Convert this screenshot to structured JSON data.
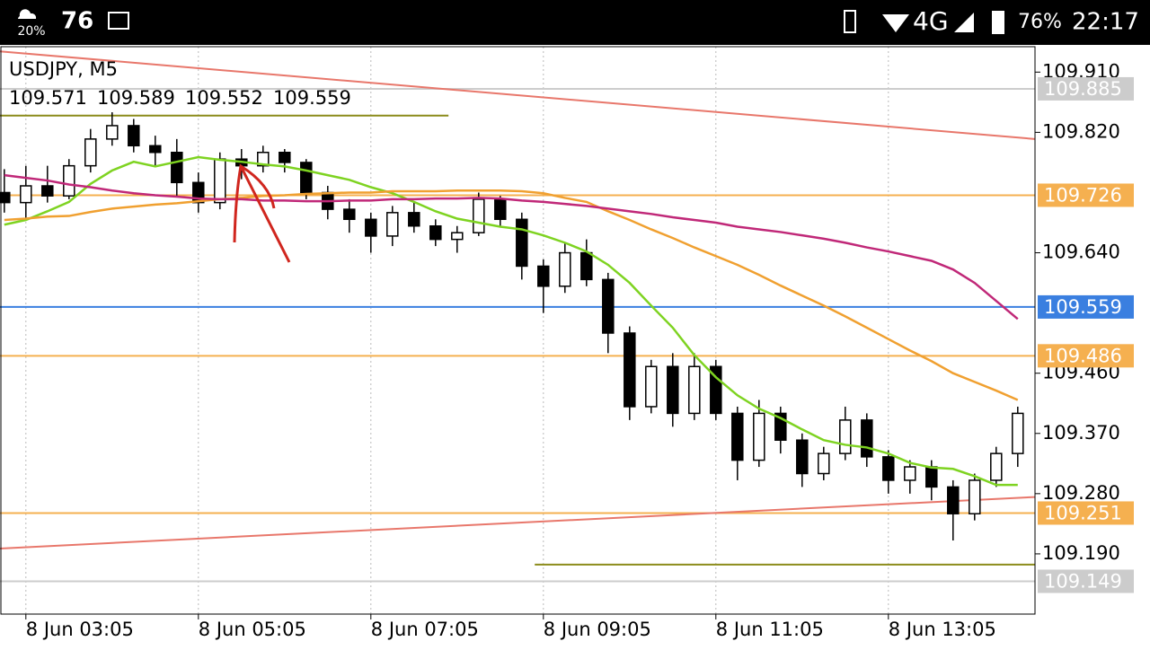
{
  "status_bar": {
    "weather": "20%",
    "temperature": "76",
    "network": "4G",
    "battery": "76%",
    "time": "22:17"
  },
  "chart_data": {
    "type": "candlestick",
    "symbol": "USDJPY, M5",
    "ohlc": [
      109.571,
      109.589,
      109.552,
      109.559
    ],
    "open": [
      109.73,
      109.715,
      109.74,
      109.725,
      109.77,
      109.81,
      109.83,
      109.8,
      109.79,
      109.745,
      109.715,
      109.78,
      109.77,
      109.79,
      109.775,
      109.73,
      109.705,
      109.69,
      109.665,
      109.7,
      109.68,
      109.66,
      109.67,
      109.72,
      109.69,
      109.62,
      109.59,
      109.64,
      109.6,
      109.52,
      109.41,
      109.47,
      109.4,
      109.47,
      109.4,
      109.33,
      109.4,
      109.36,
      109.31,
      109.34,
      109.39,
      109.335,
      109.3,
      109.32,
      109.29,
      109.25,
      109.3,
      109.34
    ],
    "high": [
      109.765,
      109.77,
      109.77,
      109.78,
      109.825,
      109.85,
      109.84,
      109.815,
      109.81,
      109.76,
      109.79,
      109.795,
      109.8,
      109.795,
      109.78,
      109.74,
      109.72,
      109.7,
      109.71,
      109.715,
      109.69,
      109.68,
      109.73,
      109.725,
      109.7,
      109.63,
      109.655,
      109.66,
      109.61,
      109.53,
      109.48,
      109.49,
      109.49,
      109.48,
      109.41,
      109.42,
      109.41,
      109.37,
      109.35,
      109.41,
      109.4,
      109.345,
      109.33,
      109.33,
      109.3,
      109.31,
      109.35,
      109.41
    ],
    "low": [
      109.7,
      109.69,
      109.715,
      109.72,
      109.76,
      109.8,
      109.79,
      109.77,
      109.725,
      109.7,
      109.705,
      109.75,
      109.76,
      109.76,
      109.72,
      109.69,
      109.67,
      109.64,
      109.65,
      109.67,
      109.65,
      109.64,
      109.665,
      109.68,
      109.6,
      109.55,
      109.58,
      109.59,
      109.49,
      109.39,
      109.4,
      109.38,
      109.39,
      109.39,
      109.3,
      109.32,
      109.34,
      109.29,
      109.3,
      109.33,
      109.32,
      109.28,
      109.28,
      109.27,
      109.21,
      109.24,
      109.29,
      109.32
    ],
    "close": [
      109.715,
      109.74,
      109.725,
      109.77,
      109.81,
      109.83,
      109.8,
      109.79,
      109.745,
      109.715,
      109.78,
      109.77,
      109.79,
      109.775,
      109.73,
      109.705,
      109.69,
      109.665,
      109.7,
      109.68,
      109.66,
      109.67,
      109.72,
      109.69,
      109.62,
      109.59,
      109.64,
      109.6,
      109.52,
      109.41,
      109.47,
      109.4,
      109.47,
      109.4,
      109.33,
      109.4,
      109.36,
      109.31,
      109.34,
      109.39,
      109.335,
      109.3,
      109.32,
      109.29,
      109.25,
      109.3,
      109.34,
      109.4
    ],
    "lines": [
      {
        "color": "#7ed321",
        "values": [
          109.682,
          109.689,
          109.702,
          109.716,
          109.743,
          109.763,
          109.776,
          109.769,
          109.776,
          109.783,
          109.779,
          109.776,
          109.772,
          109.769,
          109.763,
          109.756,
          109.749,
          109.738,
          109.729,
          109.716,
          109.702,
          109.691,
          109.685,
          109.679,
          109.675,
          109.666,
          109.655,
          109.642,
          109.622,
          109.595,
          109.561,
          109.528,
          109.487,
          109.454,
          109.427,
          109.407,
          109.393,
          109.376,
          109.36,
          109.353,
          109.349,
          109.34,
          109.326,
          109.319,
          109.317,
          109.306,
          109.293,
          109.293
        ]
      },
      {
        "color": "#f0a030",
        "values": [
          109.689,
          109.691,
          109.694,
          109.695,
          109.701,
          109.706,
          109.709,
          109.712,
          109.714,
          109.717,
          109.72,
          109.722,
          109.725,
          109.726,
          109.728,
          109.729,
          109.73,
          109.73,
          109.732,
          109.732,
          109.732,
          109.733,
          109.733,
          109.733,
          109.732,
          109.729,
          109.722,
          109.716,
          109.702,
          109.689,
          109.675,
          109.662,
          109.648,
          109.635,
          109.622,
          109.607,
          109.591,
          109.576,
          109.561,
          109.545,
          109.528,
          109.511,
          109.494,
          109.478,
          109.46,
          109.447,
          109.434,
          109.42
        ]
      },
      {
        "color": "#c02878",
        "values": [
          109.756,
          109.752,
          109.748,
          109.742,
          109.738,
          109.733,
          109.729,
          109.726,
          109.724,
          109.721,
          109.72,
          109.72,
          109.718,
          109.718,
          109.717,
          109.717,
          109.718,
          109.718,
          109.72,
          109.72,
          109.721,
          109.721,
          109.722,
          109.721,
          109.718,
          109.716,
          109.713,
          109.71,
          109.706,
          109.702,
          109.698,
          109.693,
          109.689,
          109.685,
          109.679,
          109.675,
          109.671,
          109.666,
          109.661,
          109.655,
          109.648,
          109.642,
          109.635,
          109.628,
          109.615,
          109.595,
          109.568,
          109.541
        ]
      }
    ],
    "trendlines": [
      {
        "color": "#e8776b",
        "x": [
          -0.2,
          47.8
        ],
        "y": [
          109.941,
          109.81
        ]
      },
      {
        "color": "#e8776b",
        "x": [
          -0.2,
          47.8
        ],
        "y": [
          109.198,
          109.275
        ]
      },
      {
        "color": "#8b8b1a",
        "x": [
          -0.2,
          20.6
        ],
        "y": [
          109.845,
          109.845
        ]
      },
      {
        "color": "#8b8b1a",
        "x": [
          24.6,
          47.8
        ],
        "y": [
          109.174,
          109.174
        ]
      }
    ],
    "levels": [
      {
        "value": 109.885,
        "color": "#cccccc"
      },
      {
        "value": 109.726,
        "color": "#f5b050"
      },
      {
        "value": 109.559,
        "color": "#3a7fe0"
      },
      {
        "value": 109.486,
        "color": "#f5b050"
      },
      {
        "value": 109.251,
        "color": "#f5b050"
      },
      {
        "value": 109.149,
        "color": "#cccccc"
      }
    ],
    "xlim": [
      -0.2,
      47.8
    ],
    "xticks": [
      {
        "value": 1,
        "label": "8 Jun 03:05"
      },
      {
        "value": 9,
        "label": "8 Jun 05:05"
      },
      {
        "value": 17,
        "label": "8 Jun 07:05"
      },
      {
        "value": 25,
        "label": "8 Jun 09:05"
      },
      {
        "value": 33,
        "label": "8 Jun 11:05"
      },
      {
        "value": 41,
        "label": "8 Jun 13:05"
      }
    ],
    "ylim": [
      109.1,
      109.948
    ],
    "yticks": [
      {
        "value": 109.91,
        "label": "109.910"
      },
      {
        "value": 109.82,
        "label": "109.820"
      },
      {
        "value": 109.64,
        "label": "109.640"
      },
      {
        "value": 109.46,
        "label": "109.460"
      },
      {
        "value": 109.37,
        "label": "109.370"
      },
      {
        "value": 109.28,
        "label": "109.280"
      },
      {
        "value": 109.19,
        "label": "109.190"
      }
    ],
    "grid": true
  }
}
